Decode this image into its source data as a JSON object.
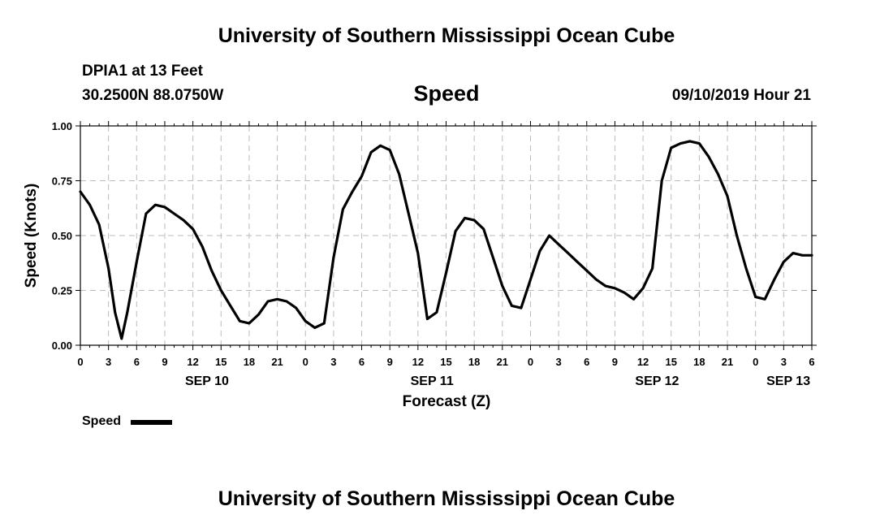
{
  "header": {
    "title": "University of Southern Mississippi Ocean Cube",
    "station": "DPIA1 at 13 Feet",
    "coords": "30.2500N 88.0750W",
    "variable": "Speed",
    "timestamp": "09/10/2019 Hour 21"
  },
  "footer": {
    "title": "University of Southern Mississippi Ocean Cube"
  },
  "legend": {
    "label": "Speed"
  },
  "chart_data": {
    "type": "line",
    "title": "Speed",
    "xlabel": "Forecast (Z)",
    "ylabel": "Speed (Knots)",
    "x_unit": "forecast hour from SEP 10 00Z",
    "xlim": [
      0,
      78
    ],
    "ylim": [
      0,
      1
    ],
    "grid": true,
    "legend_position": "bottom-left",
    "line_color": "#000000",
    "yticks": [
      {
        "value": 0.0,
        "label": "0.00"
      },
      {
        "value": 0.25,
        "label": "0.25"
      },
      {
        "value": 0.5,
        "label": "0.50"
      },
      {
        "value": 0.75,
        "label": "0.75"
      },
      {
        "value": 1.0,
        "label": "1.00"
      }
    ],
    "xticks": [
      {
        "value": 0,
        "label": "0"
      },
      {
        "value": 3,
        "label": "3"
      },
      {
        "value": 6,
        "label": "6"
      },
      {
        "value": 9,
        "label": "9"
      },
      {
        "value": 12,
        "label": "12"
      },
      {
        "value": 15,
        "label": "15"
      },
      {
        "value": 18,
        "label": "18"
      },
      {
        "value": 21,
        "label": "21"
      },
      {
        "value": 24,
        "label": "0"
      },
      {
        "value": 27,
        "label": "3"
      },
      {
        "value": 30,
        "label": "6"
      },
      {
        "value": 33,
        "label": "9"
      },
      {
        "value": 36,
        "label": "12"
      },
      {
        "value": 39,
        "label": "15"
      },
      {
        "value": 42,
        "label": "18"
      },
      {
        "value": 45,
        "label": "21"
      },
      {
        "value": 48,
        "label": "0"
      },
      {
        "value": 51,
        "label": "3"
      },
      {
        "value": 54,
        "label": "6"
      },
      {
        "value": 57,
        "label": "9"
      },
      {
        "value": 60,
        "label": "12"
      },
      {
        "value": 63,
        "label": "15"
      },
      {
        "value": 66,
        "label": "18"
      },
      {
        "value": 69,
        "label": "21"
      },
      {
        "value": 72,
        "label": "0"
      },
      {
        "value": 75,
        "label": "3"
      },
      {
        "value": 78,
        "label": "6"
      }
    ],
    "day_labels": [
      {
        "value": 13.5,
        "label": "SEP 10"
      },
      {
        "value": 37.5,
        "label": "SEP 11"
      },
      {
        "value": 61.5,
        "label": "SEP 12"
      },
      {
        "value": 75.5,
        "label": "SEP 13"
      }
    ],
    "series": [
      {
        "name": "Speed",
        "x": [
          0,
          1,
          2,
          3,
          3.7,
          4.4,
          5,
          6,
          7,
          8,
          9,
          10,
          11,
          12,
          13,
          14,
          15,
          16,
          17,
          18,
          19,
          20,
          21,
          22,
          23,
          24,
          25,
          26,
          27,
          28,
          29,
          30,
          31,
          32,
          33,
          34,
          35,
          36,
          37,
          38,
          39,
          40,
          41,
          42,
          43,
          44,
          45,
          46,
          47,
          48,
          49,
          50,
          51,
          52,
          53,
          54,
          55,
          56,
          57,
          58,
          59,
          60,
          61,
          62,
          63,
          64,
          65,
          66,
          67,
          68,
          69,
          70,
          71,
          72,
          73,
          74,
          75,
          76,
          77,
          78
        ],
        "y": [
          0.7,
          0.64,
          0.55,
          0.35,
          0.15,
          0.03,
          0.15,
          0.38,
          0.6,
          0.64,
          0.63,
          0.6,
          0.57,
          0.53,
          0.45,
          0.34,
          0.25,
          0.18,
          0.11,
          0.1,
          0.14,
          0.2,
          0.21,
          0.2,
          0.17,
          0.11,
          0.08,
          0.1,
          0.4,
          0.62,
          0.7,
          0.77,
          0.88,
          0.91,
          0.89,
          0.78,
          0.6,
          0.42,
          0.12,
          0.15,
          0.33,
          0.52,
          0.58,
          0.57,
          0.53,
          0.4,
          0.27,
          0.18,
          0.17,
          0.3,
          0.43,
          0.5,
          0.46,
          0.42,
          0.38,
          0.34,
          0.3,
          0.27,
          0.26,
          0.24,
          0.21,
          0.26,
          0.35,
          0.75,
          0.9,
          0.92,
          0.93,
          0.92,
          0.86,
          0.78,
          0.68,
          0.5,
          0.35,
          0.22,
          0.21,
          0.3,
          0.38,
          0.42,
          0.41,
          0.41
        ]
      }
    ]
  }
}
